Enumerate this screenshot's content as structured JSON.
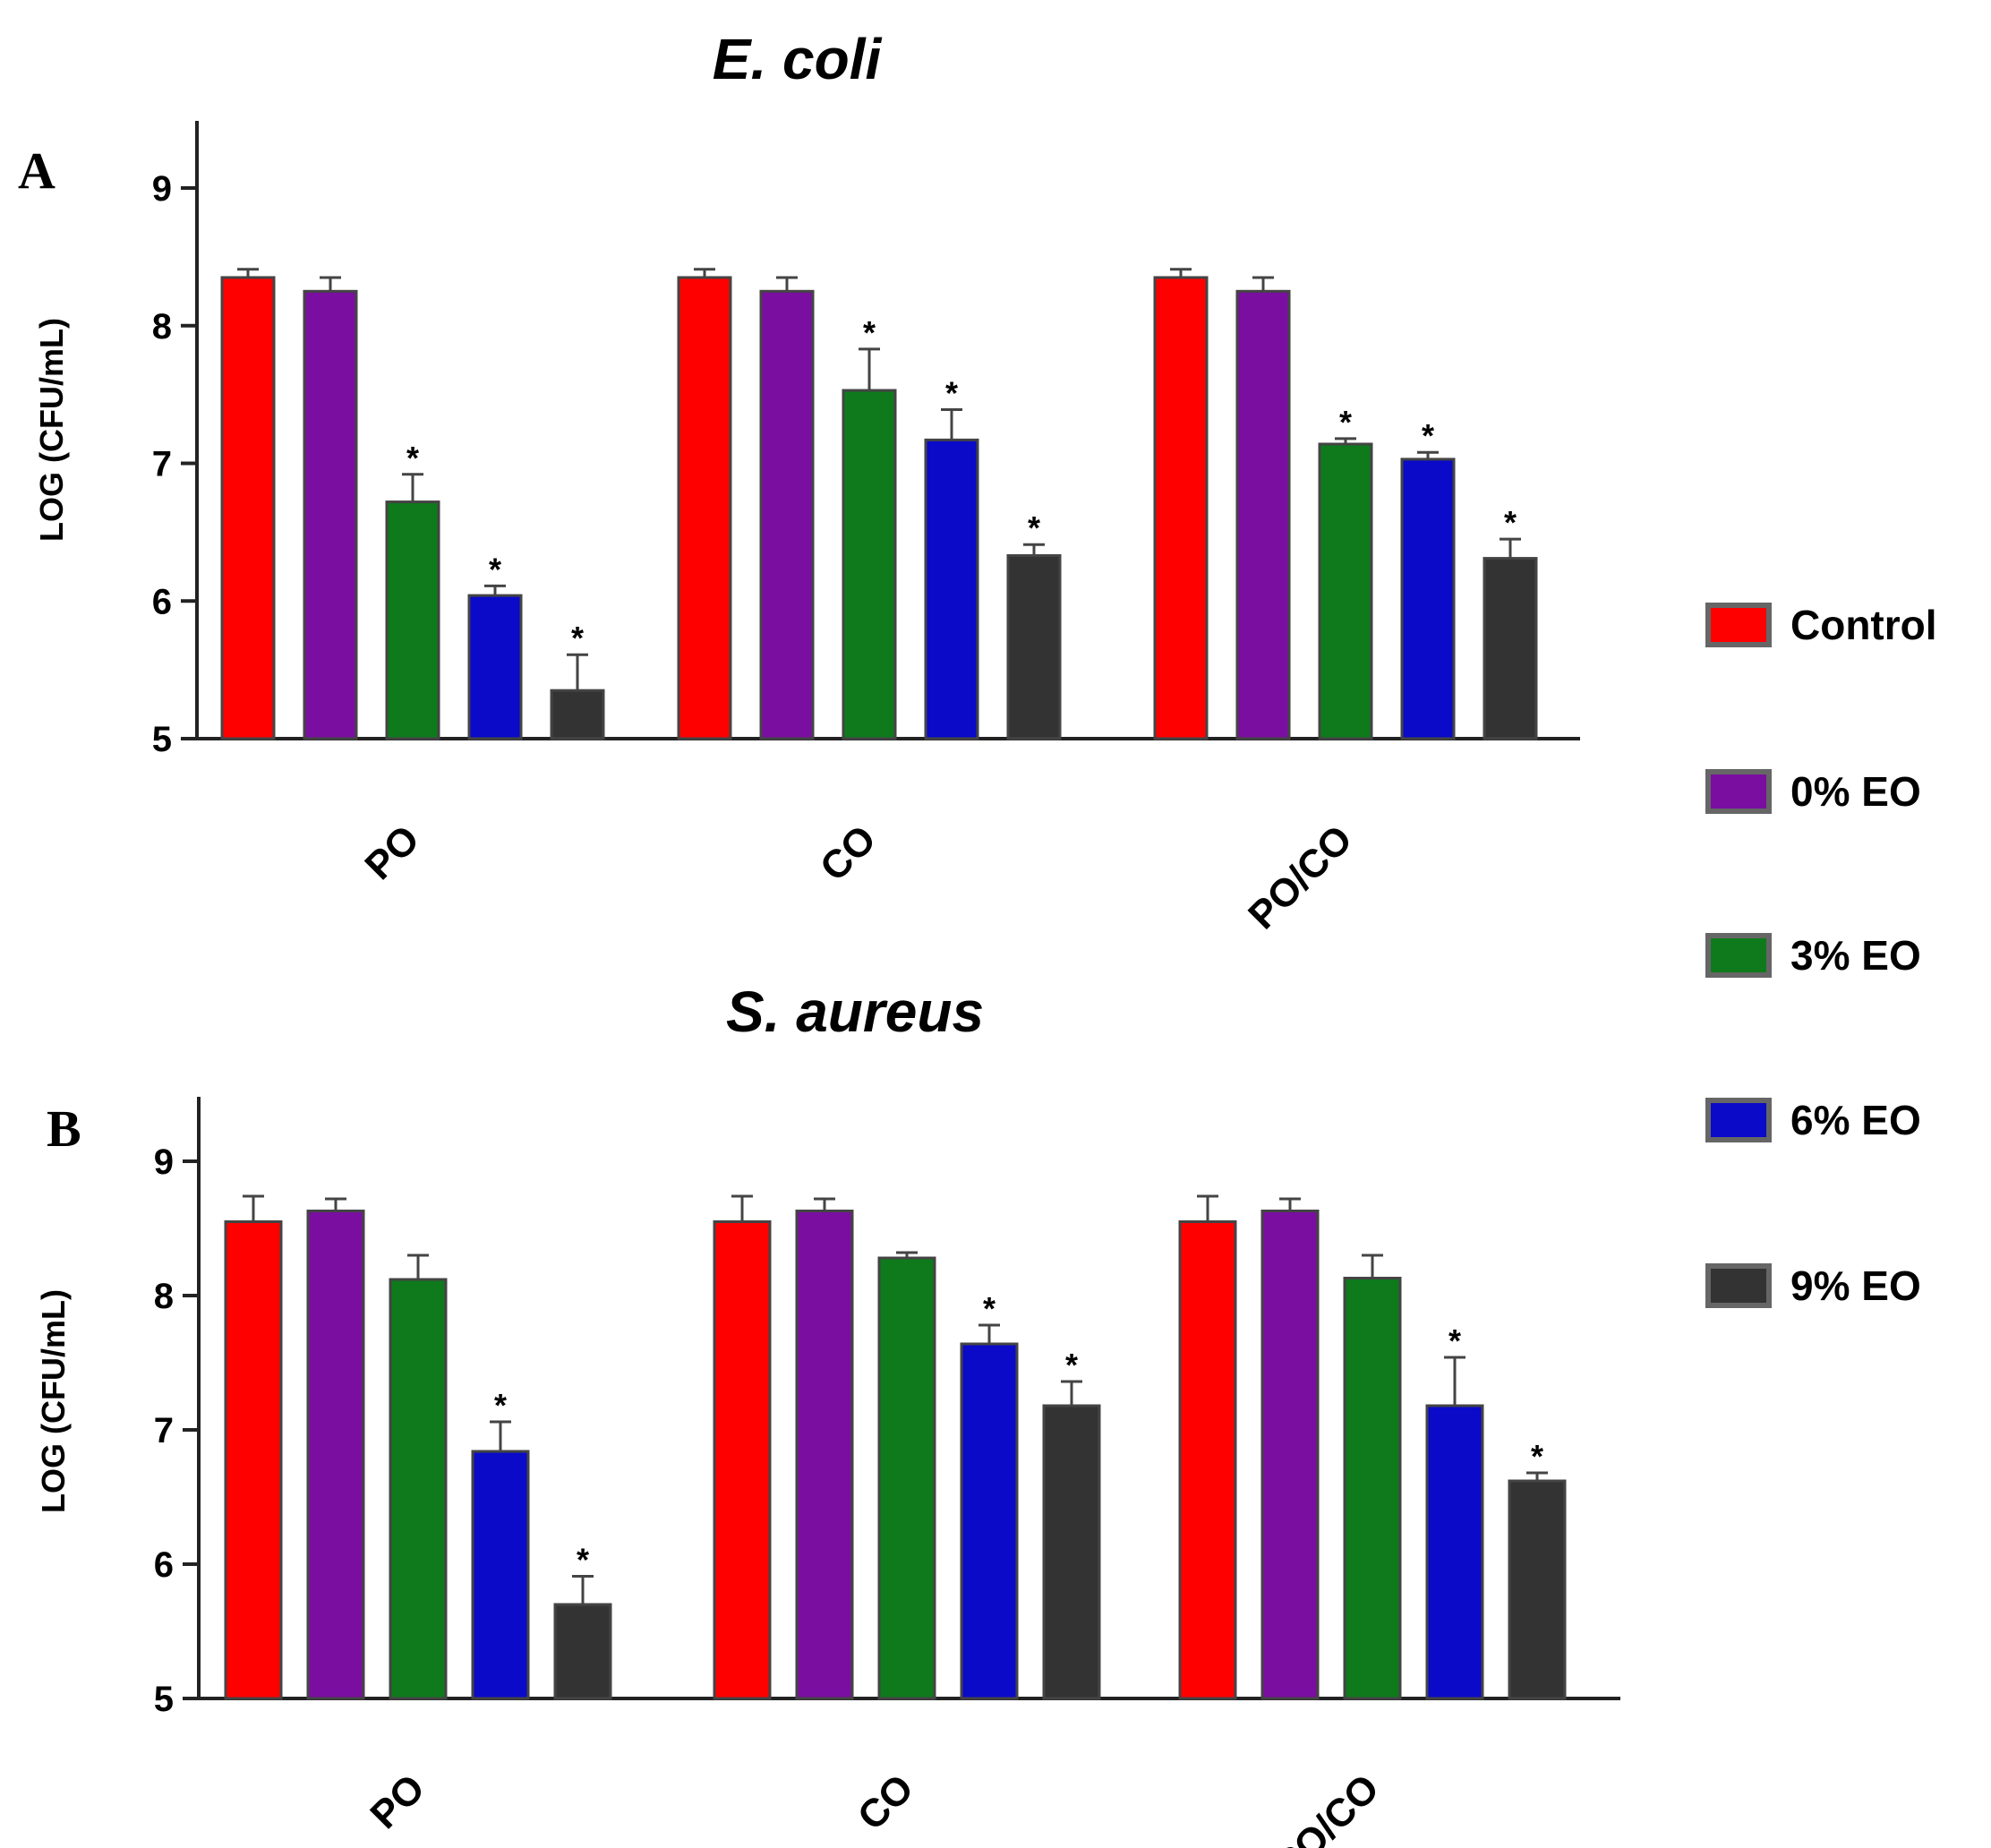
{
  "chart_data": [
    {
      "panel": "A",
      "type": "bar",
      "title": "E. coli",
      "xlabel": "",
      "ylabel": "LOG (CFU/mL)",
      "ylim": [
        5,
        9.5
      ],
      "yticks": [
        5,
        6,
        7,
        8,
        9
      ],
      "categories": [
        "PO",
        "CO",
        "PO/CO"
      ],
      "series": [
        {
          "name": "Control",
          "values": [
            8.35,
            8.35,
            8.35
          ],
          "errors": [
            0.06,
            0.06,
            0.06
          ],
          "significant": [
            false,
            false,
            false
          ]
        },
        {
          "name": "0% EO",
          "values": [
            8.25,
            8.25,
            8.25
          ],
          "errors": [
            0.1,
            0.1,
            0.1
          ],
          "significant": [
            false,
            false,
            false
          ]
        },
        {
          "name": "3% EO",
          "values": [
            6.72,
            7.53,
            7.14
          ],
          "errors": [
            0.2,
            0.3,
            0.04
          ],
          "significant": [
            true,
            true,
            true
          ]
        },
        {
          "name": "6% EO",
          "values": [
            6.04,
            7.17,
            7.03
          ],
          "errors": [
            0.07,
            0.22,
            0.05
          ],
          "significant": [
            true,
            true,
            true
          ]
        },
        {
          "name": "9% EO",
          "values": [
            5.35,
            6.33,
            6.31
          ],
          "errors": [
            0.26,
            0.08,
            0.14
          ],
          "significant": [
            true,
            true,
            true
          ]
        }
      ],
      "significance_marker": "*"
    },
    {
      "panel": "B",
      "type": "bar",
      "title": "S. aureus",
      "xlabel": "",
      "ylabel": "LOG (CFU/mL)",
      "ylim": [
        5,
        9.5
      ],
      "yticks": [
        5,
        6,
        7,
        8,
        9
      ],
      "categories": [
        "PO",
        "CO",
        "PO/CO"
      ],
      "series": [
        {
          "name": "Control",
          "values": [
            8.55,
            8.55,
            8.55
          ],
          "errors": [
            0.19,
            0.19,
            0.19
          ],
          "significant": [
            false,
            false,
            false
          ]
        },
        {
          "name": "0% EO",
          "values": [
            8.63,
            8.63,
            8.63
          ],
          "errors": [
            0.09,
            0.09,
            0.09
          ],
          "significant": [
            false,
            false,
            false
          ]
        },
        {
          "name": "3% EO",
          "values": [
            8.12,
            8.28,
            8.13
          ],
          "errors": [
            0.18,
            0.04,
            0.17
          ],
          "significant": [
            false,
            false,
            false
          ]
        },
        {
          "name": "6% EO",
          "values": [
            6.84,
            7.64,
            7.18
          ],
          "errors": [
            0.22,
            0.14,
            0.36
          ],
          "significant": [
            true,
            true,
            true
          ]
        },
        {
          "name": "9% EO",
          "values": [
            5.7,
            7.18,
            6.62
          ],
          "errors": [
            0.21,
            0.18,
            0.06
          ],
          "significant": [
            true,
            true,
            true
          ]
        }
      ],
      "significance_marker": "*"
    }
  ],
  "legend": {
    "placement": "right",
    "items": [
      {
        "label": "Control",
        "color": "#ff0000"
      },
      {
        "label": "0% EO",
        "color": "#7a0ea0"
      },
      {
        "label": "3% EO",
        "color": "#0e7a1c"
      },
      {
        "label": "6% EO",
        "color": "#0a0ac8"
      },
      {
        "label": "9% EO",
        "color": "#333333"
      }
    ]
  }
}
